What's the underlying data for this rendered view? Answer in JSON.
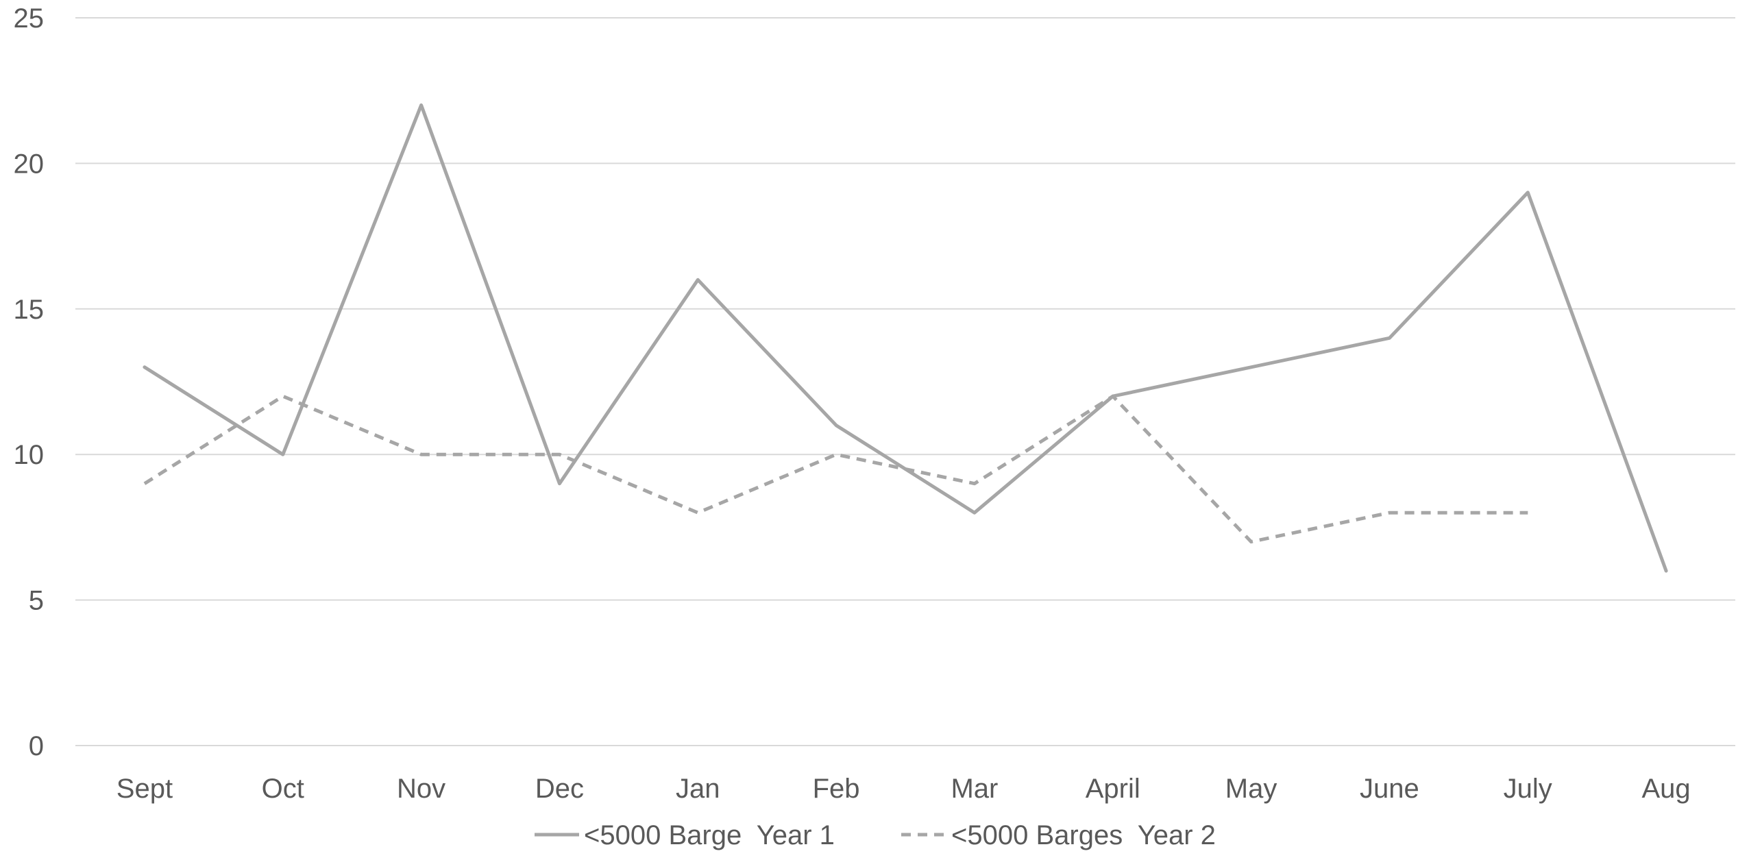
{
  "chart_data": {
    "type": "line",
    "title": "",
    "xlabel": "",
    "ylabel": "",
    "categories": [
      "Sept",
      "Oct",
      "Nov",
      "Dec",
      "Jan",
      "Feb",
      "Mar",
      "April",
      "May",
      "June",
      "July",
      "Aug"
    ],
    "ylim": [
      0,
      25
    ],
    "yticks": [
      "0",
      "5",
      "10",
      "15",
      "20",
      "25"
    ],
    "grid": true,
    "legend_position": "bottom",
    "series": [
      {
        "name": "<5000 Barge  Year 1",
        "style": "solid",
        "color": "#a6a6a6",
        "values": [
          13,
          10,
          22,
          9,
          16,
          11,
          8,
          12,
          13,
          14,
          19,
          6
        ]
      },
      {
        "name": "<5000 Barges  Year 2",
        "style": "dashed",
        "color": "#a6a6a6",
        "values": [
          9,
          12,
          10,
          10,
          8,
          10,
          9,
          12,
          7,
          8,
          8,
          null
        ]
      }
    ]
  }
}
